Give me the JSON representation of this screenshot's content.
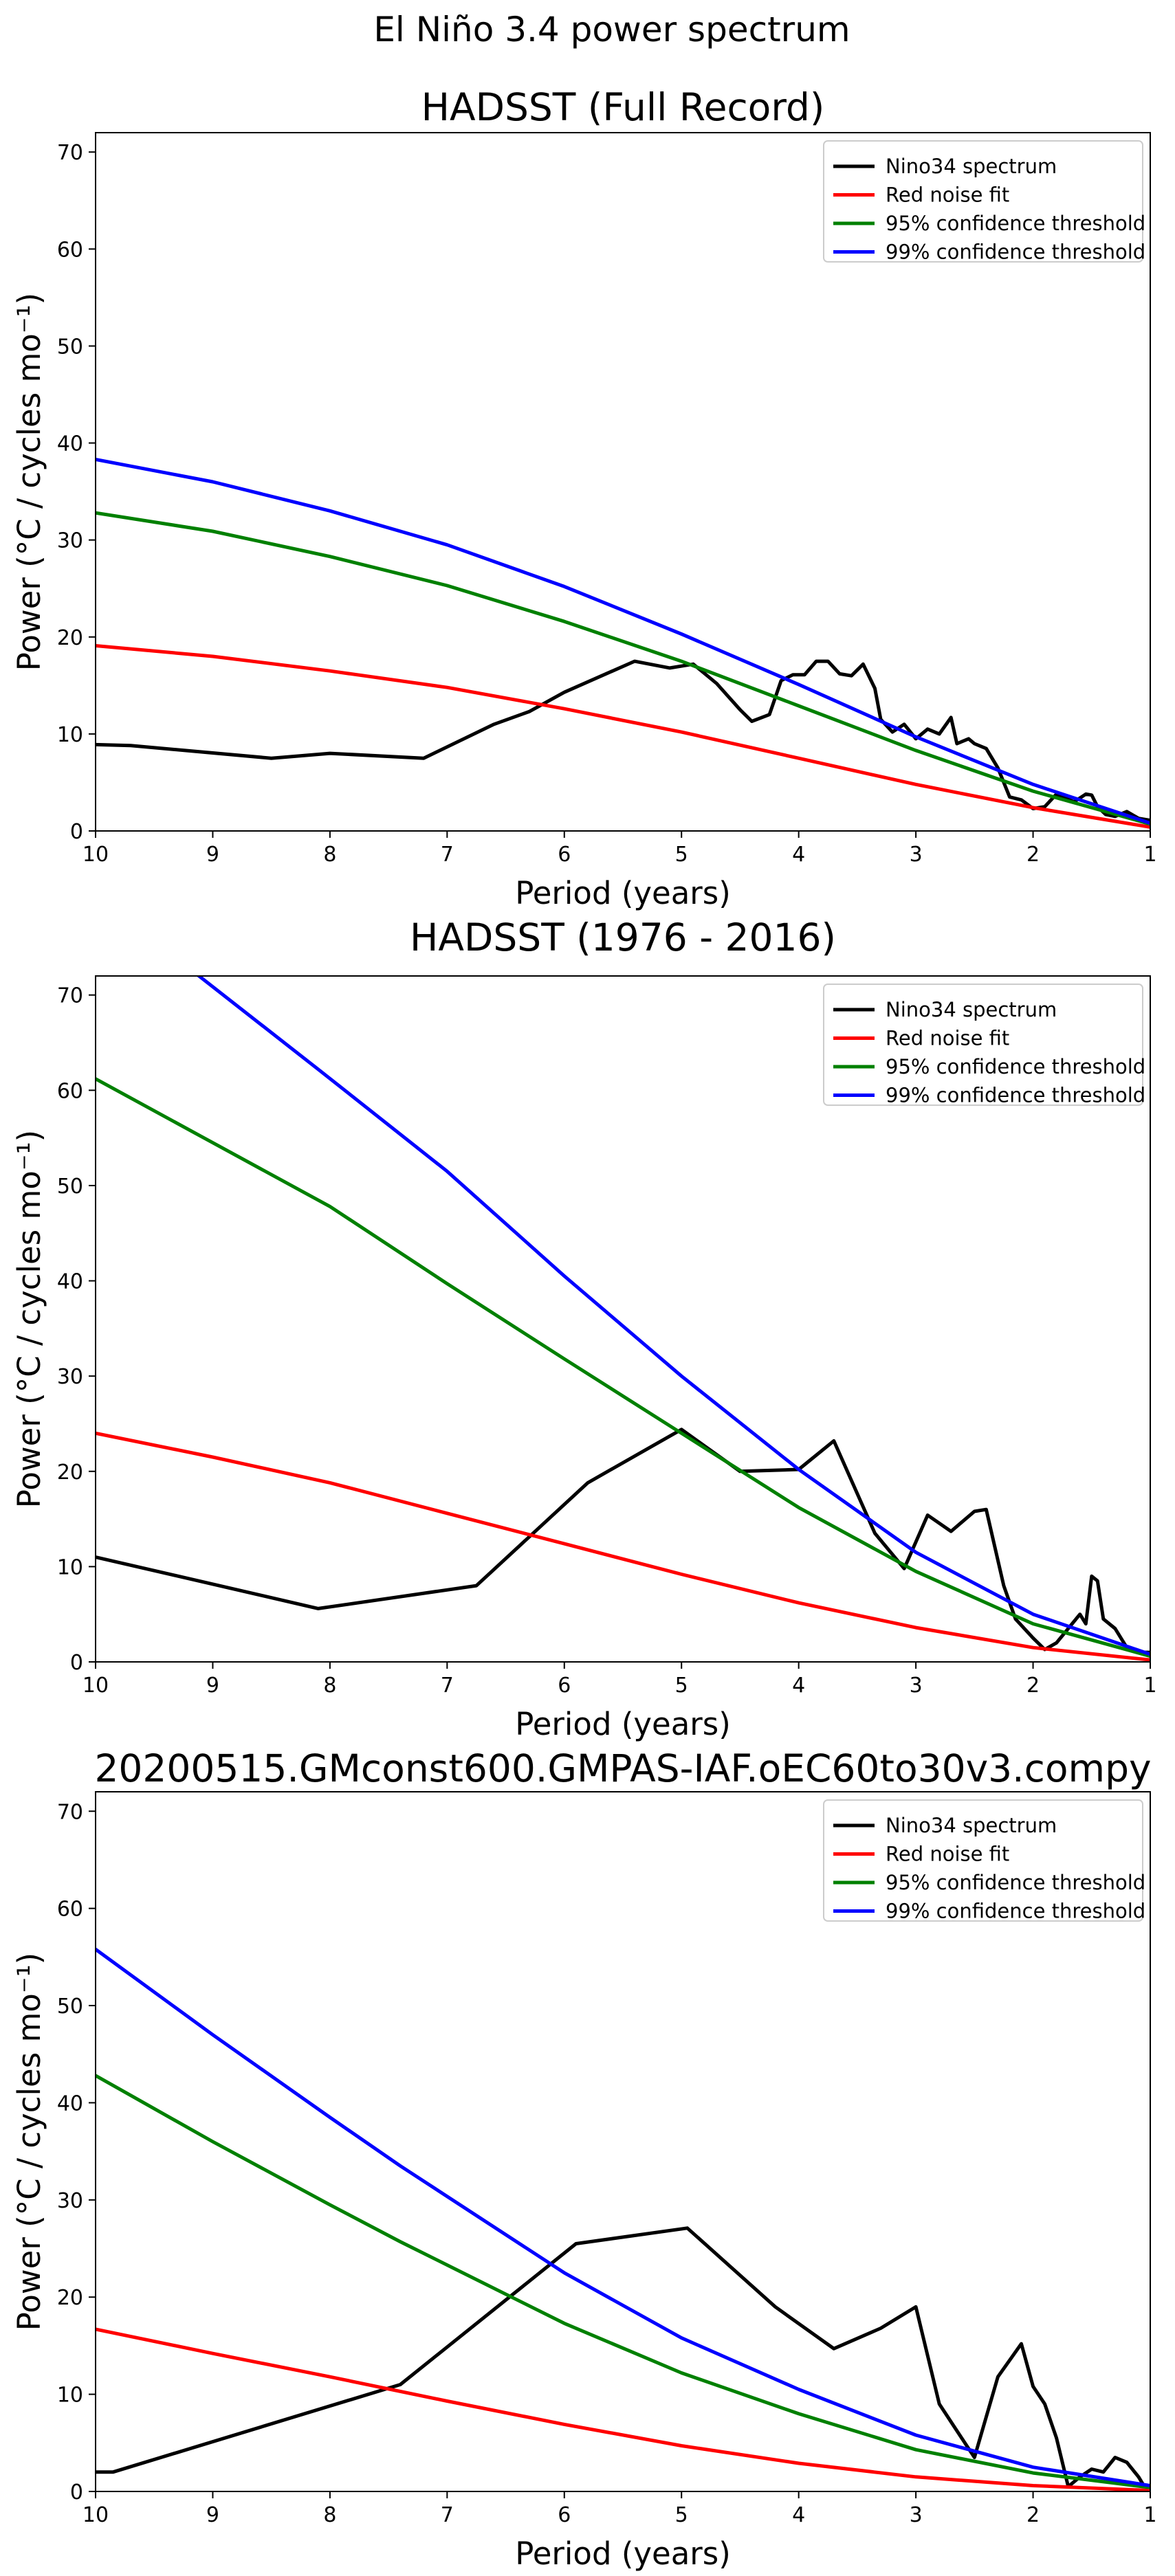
{
  "figure": {
    "suptitle": "El Niño 3.4 power spectrum"
  },
  "legend_labels": [
    "Nino34 spectrum",
    "Red noise fit",
    "95% confidence threshold",
    "99% confidence threshold"
  ],
  "colors": {
    "spectrum": "#000000",
    "red_noise": "#ff0000",
    "conf95": "#008000",
    "conf99": "#0000ff"
  },
  "chart_data": [
    {
      "type": "line",
      "title": "HADSST (Full Record)",
      "xlabel": "Period (years)",
      "ylabel": "Power (°C / cycles mo⁻¹)",
      "xlim": [
        10,
        1
      ],
      "ylim": [
        0,
        72
      ],
      "xticks": [
        10,
        9,
        8,
        7,
        6,
        5,
        4,
        3,
        2,
        1
      ],
      "yticks": [
        0,
        10,
        20,
        30,
        40,
        50,
        60,
        70
      ],
      "legend_position": "upper right",
      "series": [
        {
          "name": "Nino34 spectrum",
          "x": [
            10,
            9.7,
            8.5,
            8,
            7.2,
            6.6,
            6.3,
            6,
            5.4,
            5.1,
            4.9,
            4.7,
            4.5,
            4.4,
            4.25,
            4.15,
            4.05,
            3.95,
            3.85,
            3.75,
            3.65,
            3.55,
            3.45,
            3.35,
            3.3,
            3.2,
            3.1,
            3.0,
            2.9,
            2.8,
            2.7,
            2.65,
            2.55,
            2.5,
            2.4,
            2.3,
            2.2,
            2.1,
            2.0,
            1.9,
            1.8,
            1.75,
            1.65,
            1.55,
            1.5,
            1.45,
            1.38,
            1.3,
            1.2,
            1.1,
            1
          ],
          "y": [
            8.9,
            8.8,
            7.5,
            8.0,
            7.5,
            11.0,
            12.3,
            14.3,
            17.5,
            16.8,
            17.2,
            15.2,
            12.5,
            11.3,
            12.0,
            15.5,
            16.1,
            16.1,
            17.5,
            17.5,
            16.2,
            16.0,
            17.2,
            14.7,
            11.5,
            10.2,
            11.0,
            9.5,
            10.5,
            10.0,
            11.7,
            9.0,
            9.5,
            9.0,
            8.5,
            6.5,
            3.5,
            3.2,
            2.3,
            2.5,
            3.8,
            3.5,
            3.0,
            3.8,
            3.7,
            2.5,
            1.7,
            1.5,
            2.0,
            1.3,
            1.1
          ]
        },
        {
          "name": "Red noise fit",
          "x": [
            10,
            9,
            8,
            7,
            6,
            5,
            4,
            3,
            2,
            1
          ],
          "y": [
            19.1,
            18.0,
            16.5,
            14.8,
            12.6,
            10.2,
            7.5,
            4.8,
            2.4,
            0.4
          ]
        },
        {
          "name": "95% confidence threshold",
          "x": [
            10,
            9,
            8,
            7,
            6,
            5,
            4,
            3,
            2,
            1
          ],
          "y": [
            32.8,
            30.9,
            28.3,
            25.3,
            21.6,
            17.5,
            12.9,
            8.3,
            4.1,
            0.7
          ]
        },
        {
          "name": "99% confidence threshold",
          "x": [
            10,
            9,
            8,
            7,
            6,
            5,
            4,
            3,
            2,
            1
          ],
          "y": [
            38.3,
            36.0,
            33.0,
            29.5,
            25.2,
            20.3,
            15.1,
            9.7,
            4.8,
            0.8
          ]
        }
      ]
    },
    {
      "type": "line",
      "title": "HADSST (1976 - 2016)",
      "xlabel": "Period (years)",
      "ylabel": "Power (°C / cycles mo⁻¹)",
      "xlim": [
        10,
        1
      ],
      "ylim": [
        0,
        72
      ],
      "xticks": [
        10,
        9,
        8,
        7,
        6,
        5,
        4,
        3,
        2,
        1
      ],
      "yticks": [
        0,
        10,
        20,
        30,
        40,
        50,
        60,
        70
      ],
      "legend_position": "upper right",
      "series": [
        {
          "name": "Nino34 spectrum",
          "x": [
            10,
            8.1,
            6.75,
            5.8,
            5.0,
            4.5,
            4.0,
            3.7,
            3.35,
            3.1,
            2.9,
            2.7,
            2.5,
            2.4,
            2.25,
            2.15,
            2.0,
            1.9,
            1.8,
            1.7,
            1.6,
            1.55,
            1.5,
            1.45,
            1.4,
            1.3,
            1.2,
            1.1,
            1.0
          ],
          "y": [
            11.0,
            5.6,
            8.0,
            18.8,
            24.4,
            20.0,
            20.2,
            23.2,
            13.5,
            9.8,
            15.4,
            13.7,
            15.8,
            16.0,
            8.0,
            4.5,
            2.5,
            1.3,
            2.0,
            3.5,
            5.0,
            4.0,
            9.0,
            8.5,
            4.5,
            3.5,
            1.5,
            1.0,
            1.0
          ]
        },
        {
          "name": "Red noise fit",
          "x": [
            10,
            9,
            8,
            7,
            6,
            5,
            4,
            3,
            2,
            1
          ],
          "y": [
            24.0,
            21.5,
            18.8,
            15.6,
            12.4,
            9.2,
            6.2,
            3.6,
            1.5,
            0.2
          ]
        },
        {
          "name": "95% confidence threshold",
          "x": [
            10,
            9,
            8,
            7,
            6,
            5,
            4,
            3,
            2,
            1
          ],
          "y": [
            61.2,
            54.5,
            47.8,
            39.7,
            31.8,
            24.0,
            16.2,
            9.5,
            4.0,
            0.6
          ]
        },
        {
          "name": "99% confidence threshold",
          "x": [
            10,
            8.1,
            7,
            6,
            5,
            4,
            3,
            2,
            1
          ],
          "y": [
            80.5,
            62.2,
            51.5,
            40.5,
            30.0,
            20.2,
            11.5,
            5.0,
            0.8
          ]
        }
      ]
    },
    {
      "type": "line",
      "title": "20200515.GMconst600.GMPAS-IAF.oEC60to30v3.compy",
      "xlabel": "Period (years)",
      "ylabel": "Power (°C / cycles mo⁻¹)",
      "xlim": [
        10,
        1
      ],
      "ylim": [
        0,
        72
      ],
      "xticks": [
        10,
        9,
        8,
        7,
        6,
        5,
        4,
        3,
        2,
        1
      ],
      "yticks": [
        0,
        10,
        20,
        30,
        40,
        50,
        60,
        70
      ],
      "legend_position": "upper right",
      "series": [
        {
          "name": "Nino34 spectrum",
          "x": [
            10,
            9.85,
            7.4,
            5.9,
            4.95,
            4.2,
            3.7,
            3.3,
            3.0,
            2.8,
            2.5,
            2.3,
            2.1,
            2.0,
            1.9,
            1.8,
            1.7,
            1.6,
            1.5,
            1.4,
            1.3,
            1.2,
            1.1,
            1.05,
            1.0
          ],
          "y": [
            2.0,
            2.0,
            11.0,
            25.5,
            27.1,
            19.0,
            14.7,
            16.8,
            19.0,
            9.0,
            3.5,
            11.8,
            15.2,
            10.8,
            9.0,
            5.5,
            0.5,
            1.5,
            2.3,
            2.0,
            3.5,
            3.0,
            1.5,
            0.5,
            0.5
          ]
        },
        {
          "name": "Red noise fit",
          "x": [
            10,
            9,
            8,
            7,
            6,
            5,
            4,
            3,
            2,
            1
          ],
          "y": [
            16.7,
            14.2,
            11.8,
            9.3,
            6.9,
            4.7,
            2.9,
            1.5,
            0.6,
            0.1
          ]
        },
        {
          "name": "95% confidence threshold",
          "x": [
            10,
            9,
            8,
            7.4,
            6,
            5,
            4,
            3,
            2,
            1
          ],
          "y": [
            42.8,
            36.0,
            29.5,
            25.7,
            17.3,
            12.2,
            8.0,
            4.3,
            1.9,
            0.4
          ]
        },
        {
          "name": "99% confidence threshold",
          "x": [
            10,
            9,
            8,
            7.4,
            6,
            5,
            4,
            3,
            2,
            1
          ],
          "y": [
            55.8,
            47.0,
            38.5,
            33.5,
            22.5,
            15.8,
            10.5,
            5.8,
            2.5,
            0.6
          ]
        }
      ]
    }
  ]
}
